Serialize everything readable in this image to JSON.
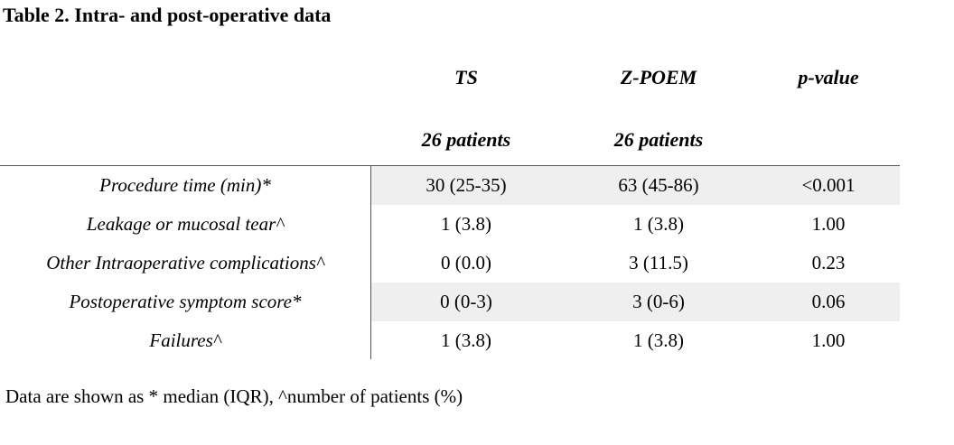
{
  "title": "Table 2. Intra- and post-operative data",
  "columns": {
    "ts": {
      "name": "TS",
      "count": "26 patients"
    },
    "zpoem": {
      "name": "Z-POEM",
      "count": "26 patients"
    },
    "pvalue": {
      "name": "p-value"
    }
  },
  "rows": [
    {
      "label": "Procedure time (min)*",
      "ts": "30 (25-35)",
      "zpoem": "63 (45-86)",
      "p": "<0.001"
    },
    {
      "label": "Leakage or mucosal tear^",
      "ts": "1 (3.8)",
      "zpoem": "1 (3.8)",
      "p": "1.00"
    },
    {
      "label": "Other Intraoperative complications^",
      "ts": "0 (0.0)",
      "zpoem": "3 (11.5)",
      "p": "0.23"
    },
    {
      "label": "Postoperative symptom score*",
      "ts": "0 (0-3)",
      "zpoem": "3 (0-6)",
      "p": "0.06"
    },
    {
      "label": "Failures^",
      "ts": "1 (3.8)",
      "zpoem": "1 (3.8)",
      "p": "1.00"
    }
  ],
  "footnote": "Data are shown as * median (IQR), ^number of patients (%)",
  "colors": {
    "shaded_row": "#efefef",
    "rule": "#555555"
  }
}
